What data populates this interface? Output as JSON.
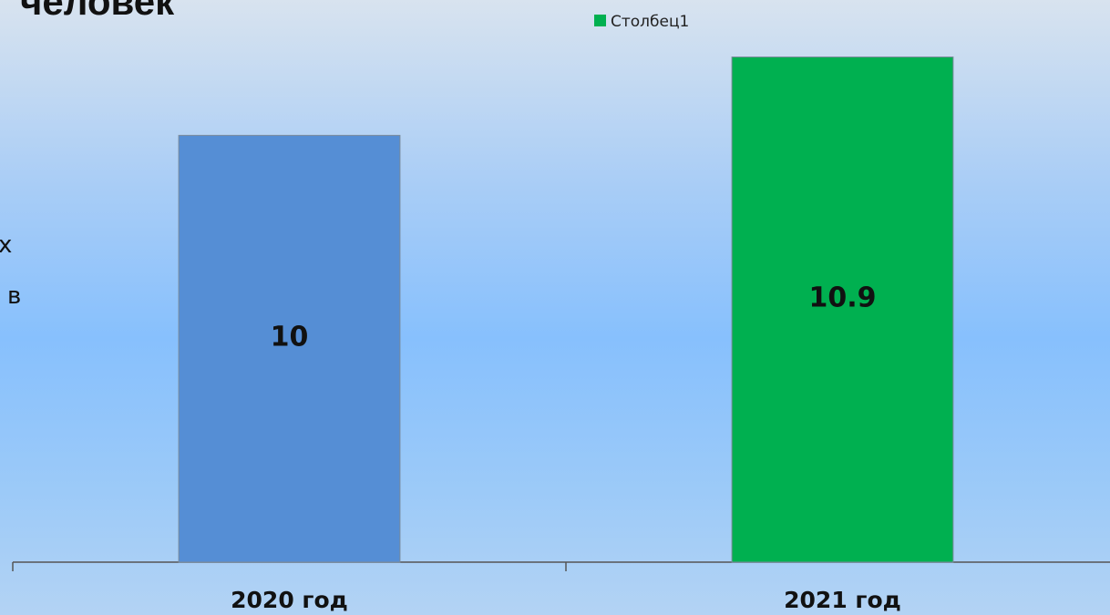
{
  "slide_text": {
    "title": "человек",
    "fragments": [
      "х",
      "в"
    ]
  },
  "chart_data": {
    "type": "bar",
    "categories": [
      "2020 год",
      "2021 год"
    ],
    "series": [
      {
        "name": "Столбец1",
        "color": "#00b050",
        "colors": [
          "#558ed5",
          "#00b050"
        ],
        "values": [
          10,
          10.9
        ]
      }
    ],
    "ylim": [
      5.1,
      11
    ],
    "legend": "top"
  }
}
